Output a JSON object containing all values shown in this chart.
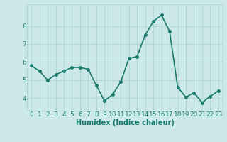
{
  "x": [
    0,
    1,
    2,
    3,
    4,
    5,
    6,
    7,
    8,
    9,
    10,
    11,
    12,
    13,
    14,
    15,
    16,
    17,
    18,
    19,
    20,
    21,
    22,
    23
  ],
  "y": [
    5.8,
    5.5,
    5.0,
    5.3,
    5.5,
    5.7,
    5.7,
    5.6,
    4.7,
    3.85,
    4.2,
    4.9,
    6.2,
    6.3,
    7.5,
    8.25,
    8.6,
    7.7,
    4.6,
    4.05,
    4.3,
    3.75,
    4.1,
    4.4
  ],
  "line_color": "#1a7a6e",
  "marker": "o",
  "markersize": 2.5,
  "linewidth": 1.2,
  "background_color": "#cce8e8",
  "grid_color": "#add4d4",
  "xlabel": "Humidex (Indice chaleur)",
  "xlabel_fontsize": 7,
  "tick_fontsize": 6.5,
  "xlim": [
    -0.5,
    23.5
  ],
  "ylim": [
    3.3,
    9.2
  ],
  "yticks": [
    4,
    5,
    6,
    7,
    8
  ],
  "xticks": [
    0,
    1,
    2,
    3,
    4,
    5,
    6,
    7,
    8,
    9,
    10,
    11,
    12,
    13,
    14,
    15,
    16,
    17,
    18,
    19,
    20,
    21,
    22,
    23
  ]
}
